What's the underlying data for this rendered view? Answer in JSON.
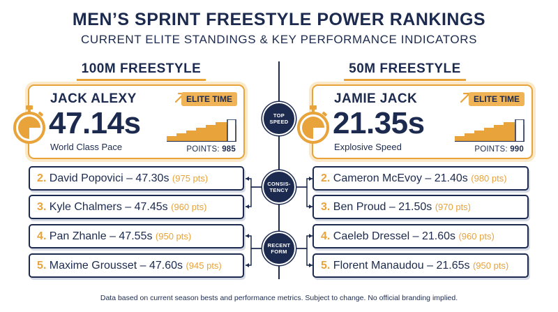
{
  "header": {
    "title": "MEN’S SPRINT FREESTYLE POWER RANKINGS",
    "subtitle": "CURRENT ELITE STANDINGS & KEY PERFORMANCE INDICATORS"
  },
  "columns": {
    "left": {
      "heading": "100M FREESTYLE",
      "leader": {
        "name": "JACK ALEXY",
        "time": "47.14s",
        "description": "World Class Pace",
        "badge": "ELITE TIME",
        "points_label": "POINTS:",
        "points_value": "985"
      },
      "rankings": [
        {
          "rank": "2.",
          "entry": "David Popovici – 47.30s",
          "points": "(975 pts)"
        },
        {
          "rank": "3.",
          "entry": "Kyle Chalmers – 47.45s",
          "points": "(960 pts)"
        },
        {
          "rank": "4.",
          "entry": "Pan Zhanle – 47.55s",
          "points": "(950 pts)"
        },
        {
          "rank": "5.",
          "entry": "Maxime Grousset – 47.60s",
          "points": "(945 pts)"
        }
      ]
    },
    "right": {
      "heading": "50M FREESTYLE",
      "leader": {
        "name": "JAMIE JACK",
        "time": "21.35s",
        "description": "Explosive Speed",
        "badge": "ELITE TIME",
        "points_label": "POINTS:",
        "points_value": "990"
      },
      "rankings": [
        {
          "rank": "2.",
          "entry": "Cameron McEvoy – 21.40s",
          "points": "(980 pts)"
        },
        {
          "rank": "3.",
          "entry": "Ben Proud – 21.50s",
          "points": "(970 pts)"
        },
        {
          "rank": "4.",
          "entry": "Caeleb Dressel – 21.60s",
          "points": "(960 pts)"
        },
        {
          "rank": "5.",
          "entry": "Florent Manaudou – 21.65s",
          "points": "(950 pts)"
        }
      ]
    }
  },
  "center_badges": {
    "top_speed": [
      "TOP",
      "SPEED"
    ],
    "consistency": [
      "CONSIS-",
      "TENCY"
    ],
    "recent_form": [
      "RECENT",
      "FORM"
    ]
  },
  "footnote": "Data based on current season bests and performance metrics. Subject to change. No official branding implied.",
  "colors": {
    "navy": "#1b2a4e",
    "gold": "#e8a33a",
    "gold_light": "#f0b355"
  },
  "icons": {
    "leader": "stopwatch-icon",
    "trend": "trend-up-arrow-icon",
    "progress": "stepped-bar-chart-icon"
  }
}
